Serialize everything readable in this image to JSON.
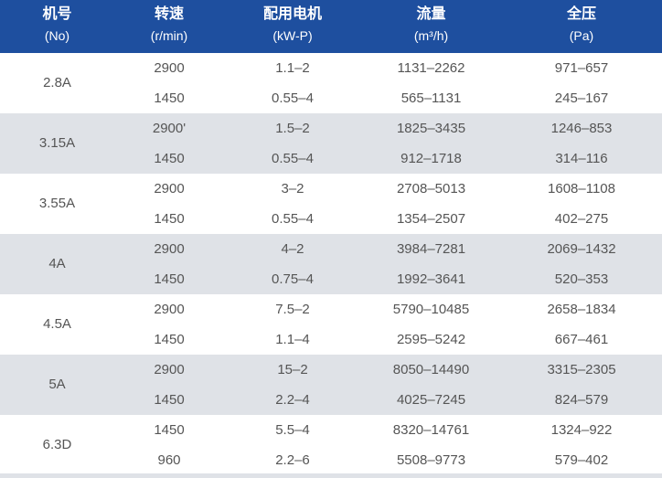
{
  "header": {
    "columns": [
      {
        "title": "机号",
        "unit": "(No)"
      },
      {
        "title": "转速",
        "unit": "(r/min)"
      },
      {
        "title": "配用电机",
        "unit": "(kW-P)"
      },
      {
        "title": "流量",
        "unit": "(m³/h)"
      },
      {
        "title": "全压",
        "unit": "(Pa)"
      }
    ]
  },
  "groups": [
    {
      "no": "2.8A",
      "rows": [
        [
          "2900",
          "1.1–2",
          "1131–2262",
          "971–657"
        ],
        [
          "1450",
          "0.55–4",
          "565–1131",
          "245–167"
        ]
      ]
    },
    {
      "no": "3.15A",
      "rows": [
        [
          "2900'",
          "1.5–2",
          "1825–3435",
          "1246–853"
        ],
        [
          "1450",
          "0.55–4",
          "912–1718",
          "314–116"
        ]
      ]
    },
    {
      "no": "3.55A",
      "rows": [
        [
          "2900",
          "3–2",
          "2708–5013",
          "1608–1108"
        ],
        [
          "1450",
          "0.55–4",
          "1354–2507",
          "402–275"
        ]
      ]
    },
    {
      "no": "4A",
      "rows": [
        [
          "2900",
          "4–2",
          "3984–7281",
          "2069–1432"
        ],
        [
          "1450",
          "0.75–4",
          "1992–3641",
          "520–353"
        ]
      ]
    },
    {
      "no": "4.5A",
      "rows": [
        [
          "2900",
          "7.5–2",
          "5790–10485",
          "2658–1834"
        ],
        [
          "1450",
          "1.1–4",
          "2595–5242",
          "667–461"
        ]
      ]
    },
    {
      "no": "5A",
      "rows": [
        [
          "2900",
          "15–2",
          "8050–14490",
          "3315–2305"
        ],
        [
          "1450",
          "2.2–4",
          "4025–7245",
          "824–579"
        ]
      ]
    },
    {
      "no": "6.3D",
      "rows": [
        [
          "1450",
          "5.5–4",
          "8320–14761",
          "1324–922"
        ],
        [
          "960",
          "2.2–6",
          "5508–9773",
          "579–402"
        ]
      ]
    }
  ]
}
